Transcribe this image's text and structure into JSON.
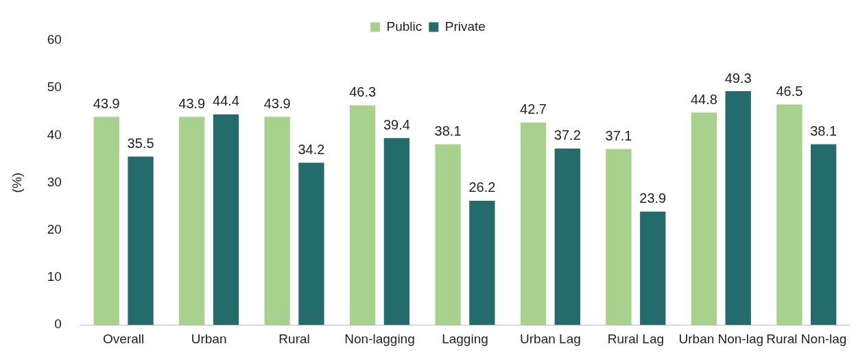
{
  "chart_data": {
    "type": "bar",
    "ylabel": "(%)",
    "categories": [
      "Overall",
      "Urban",
      "Rural",
      "Non-lagging",
      "Lagging",
      "Urban Lag",
      "Rural Lag",
      "Urban Non-lag",
      "Rural Non-lag"
    ],
    "series": [
      {
        "name": "Public",
        "color": "#a9d18e",
        "values": [
          43.9,
          43.9,
          43.9,
          46.3,
          38.1,
          42.7,
          37.1,
          44.8,
          46.5
        ]
      },
      {
        "name": "Private",
        "color": "#246b6b",
        "values": [
          35.5,
          44.4,
          34.2,
          39.4,
          26.2,
          37.2,
          23.9,
          49.3,
          38.1
        ]
      }
    ],
    "ylim": [
      0,
      60
    ],
    "yticks": [
      0,
      10,
      20,
      30,
      40,
      50,
      60
    ],
    "grid": false,
    "legend": "top",
    "data_labels": true
  }
}
